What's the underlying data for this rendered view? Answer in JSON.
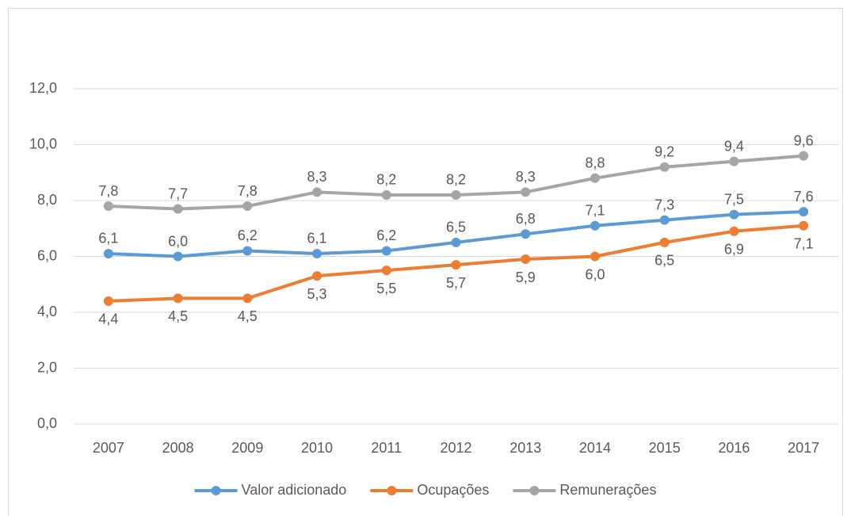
{
  "chart_data": {
    "type": "line",
    "categories": [
      "2007",
      "2008",
      "2009",
      "2010",
      "2011",
      "2012",
      "2013",
      "2014",
      "2015",
      "2016",
      "2017"
    ],
    "series": [
      {
        "name": "Valor adicionado",
        "color": "#5b9bd5",
        "values": [
          6.1,
          6.0,
          6.2,
          6.1,
          6.2,
          6.5,
          6.8,
          7.1,
          7.3,
          7.5,
          7.6
        ],
        "value_labels": [
          "6,1",
          "6,0",
          "6,2",
          "6,1",
          "6,2",
          "6,5",
          "6,8",
          "7,1",
          "7,3",
          "7,5",
          "7,6"
        ]
      },
      {
        "name": "Ocupações",
        "color": "#ed7d31",
        "values": [
          4.4,
          4.5,
          4.5,
          5.3,
          5.5,
          5.7,
          5.9,
          6.0,
          6.5,
          6.9,
          7.1
        ],
        "value_labels": [
          "4,4",
          "4,5",
          "4,5",
          "5,3",
          "5,5",
          "5,7",
          "5,9",
          "6,0",
          "6,5",
          "6,9",
          "7,1"
        ]
      },
      {
        "name": "Remunerações",
        "color": "#a5a5a5",
        "values": [
          7.8,
          7.7,
          7.8,
          8.3,
          8.2,
          8.2,
          8.3,
          8.8,
          9.2,
          9.4,
          9.6
        ],
        "value_labels": [
          "7,8",
          "7,7",
          "7,8",
          "8,3",
          "8,2",
          "8,2",
          "8,3",
          "8,8",
          "9,2",
          "9,4",
          "9,6"
        ]
      }
    ],
    "ylim": [
      0,
      12
    ],
    "yticks": [
      {
        "value": 0,
        "label": "0,0"
      },
      {
        "value": 2,
        "label": "2,0"
      },
      {
        "value": 4,
        "label": "4,0"
      },
      {
        "value": 6,
        "label": "6,0"
      },
      {
        "value": 8,
        "label": "8,0"
      },
      {
        "value": 10,
        "label": "10,0"
      },
      {
        "value": 12,
        "label": "12,0"
      }
    ],
    "grid": true,
    "legend": "bottom"
  }
}
